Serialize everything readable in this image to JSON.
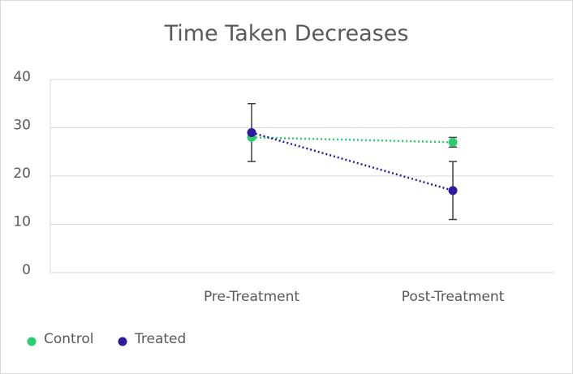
{
  "chart_data": {
    "type": "line",
    "title": "Time Taken Decreases",
    "categories": [
      "Pre-Treatment",
      "Post-Treatment"
    ],
    "ylim": [
      0,
      40
    ],
    "yticks": [
      0,
      10,
      20,
      30,
      40
    ],
    "grid": true,
    "legend_position": "bottom-left",
    "series": [
      {
        "name": "Control",
        "color": "#2ecc71",
        "values": [
          28,
          27
        ],
        "error_low": [
          null,
          26
        ],
        "error_high": [
          null,
          28
        ]
      },
      {
        "name": "Treated",
        "color": "#2e1a9c",
        "values": [
          29,
          17
        ],
        "error_low": [
          23,
          11
        ],
        "error_high": [
          35,
          23
        ]
      }
    ]
  }
}
